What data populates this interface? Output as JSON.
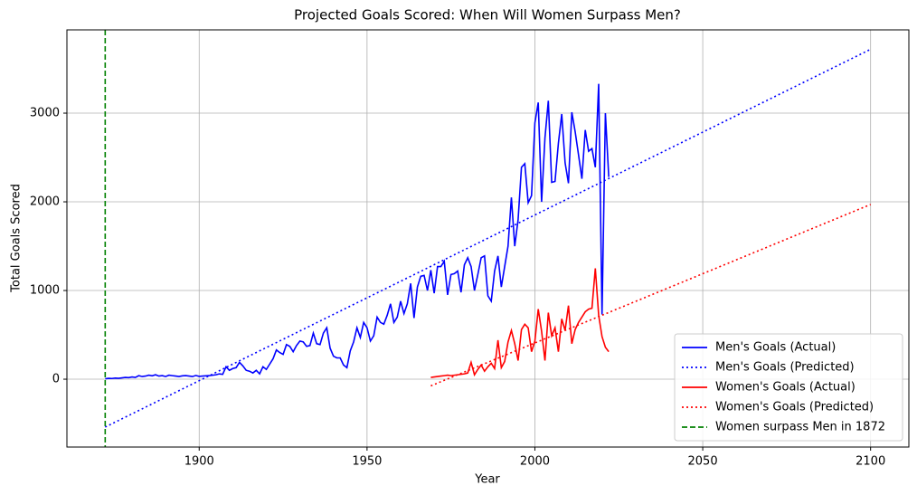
{
  "chart_data": {
    "type": "line",
    "title": "Projected Goals Scored: When Will Women Surpass Men?",
    "x_label": "Year",
    "y_label": "Total Goals Scored",
    "xlim": [
      1860.6,
      2111.4
    ],
    "ylim": [
      -765,
      3939
    ],
    "xticks": [
      1900,
      1950,
      2000,
      2050,
      2100
    ],
    "yticks": [
      0,
      1000,
      2000,
      3000
    ],
    "grid": true,
    "legend": "lower right",
    "series": [
      {
        "name": "Men's Goals (Actual)",
        "color": "#0000ff",
        "dash": "solid",
        "x": [
          1872,
          1873,
          1874,
          1875,
          1876,
          1877,
          1878,
          1879,
          1880,
          1881,
          1882,
          1883,
          1884,
          1885,
          1886,
          1887,
          1888,
          1889,
          1890,
          1891,
          1892,
          1893,
          1894,
          1895,
          1896,
          1897,
          1898,
          1899,
          1900,
          1901,
          1902,
          1903,
          1904,
          1905,
          1906,
          1907,
          1908,
          1909,
          1910,
          1911,
          1912,
          1913,
          1914,
          1915,
          1916,
          1917,
          1918,
          1919,
          1920,
          1921,
          1922,
          1923,
          1924,
          1925,
          1926,
          1927,
          1928,
          1929,
          1930,
          1931,
          1932,
          1933,
          1934,
          1935,
          1936,
          1937,
          1938,
          1939,
          1940,
          1941,
          1942,
          1943,
          1944,
          1945,
          1946,
          1947,
          1948,
          1949,
          1950,
          1951,
          1952,
          1953,
          1954,
          1955,
          1956,
          1957,
          1958,
          1959,
          1960,
          1961,
          1962,
          1963,
          1964,
          1965,
          1966,
          1967,
          1968,
          1969,
          1970,
          1971,
          1972,
          1973,
          1974,
          1975,
          1976,
          1977,
          1978,
          1979,
          1980,
          1981,
          1982,
          1983,
          1984,
          1985,
          1986,
          1987,
          1988,
          1989,
          1990,
          1991,
          1992,
          1993,
          1994,
          1995,
          1996,
          1997,
          1998,
          1999,
          2000,
          2001,
          2002,
          2003,
          2004,
          2005,
          2006,
          2007,
          2008,
          2009,
          2010,
          2011,
          2012,
          2013,
          2014,
          2015,
          2016,
          2017,
          2018,
          2019,
          2020,
          2021,
          2022
        ],
        "values": [
          5,
          10,
          8,
          12,
          10,
          15,
          20,
          18,
          25,
          20,
          40,
          30,
          35,
          45,
          38,
          50,
          35,
          40,
          30,
          45,
          40,
          35,
          30,
          38,
          40,
          35,
          30,
          42,
          32,
          35,
          38,
          40,
          45,
          50,
          60,
          55,
          140,
          100,
          120,
          130,
          190,
          150,
          100,
          90,
          70,
          100,
          60,
          140,
          110,
          170,
          230,
          330,
          300,
          280,
          390,
          370,
          310,
          380,
          430,
          420,
          370,
          380,
          520,
          400,
          390,
          520,
          580,
          350,
          260,
          240,
          240,
          160,
          130,
          320,
          420,
          580,
          470,
          640,
          580,
          430,
          490,
          700,
          640,
          620,
          720,
          850,
          640,
          700,
          880,
          740,
          850,
          1080,
          690,
          1040,
          1160,
          1170,
          1000,
          1230,
          970,
          1270,
          1270,
          1330,
          950,
          1180,
          1190,
          1220,
          980,
          1290,
          1370,
          1270,
          1000,
          1180,
          1370,
          1390,
          940,
          880,
          1220,
          1390,
          1040,
          1270,
          1500,
          2050,
          1500,
          1800,
          2390,
          2430,
          1990,
          2070,
          2890,
          3120,
          2000,
          2720,
          3140,
          2220,
          2230,
          2660,
          2990,
          2440,
          2210,
          3010,
          2790,
          2530,
          2260,
          2810,
          2570,
          2600,
          2390,
          3330,
          730,
          3000,
          2280
        ]
      },
      {
        "name": "Men's Goals (Predicted)",
        "color": "#0000ff",
        "dash": "dotted",
        "x": [
          1872,
          2100
        ],
        "values": [
          -540,
          3720
        ]
      },
      {
        "name": "Women's Goals (Actual)",
        "color": "#ff0000",
        "dash": "solid",
        "x": [
          1969,
          1970,
          1971,
          1972,
          1973,
          1974,
          1975,
          1976,
          1977,
          1978,
          1979,
          1980,
          1981,
          1982,
          1983,
          1984,
          1985,
          1986,
          1987,
          1988,
          1989,
          1990,
          1991,
          1992,
          1993,
          1994,
          1995,
          1996,
          1997,
          1998,
          1999,
          2000,
          2001,
          2002,
          2003,
          2004,
          2005,
          2006,
          2007,
          2008,
          2009,
          2010,
          2011,
          2012,
          2013,
          2014,
          2015,
          2016,
          2017,
          2018,
          2019,
          2020,
          2021,
          2022
        ],
        "values": [
          20,
          25,
          30,
          35,
          40,
          45,
          40,
          45,
          50,
          55,
          60,
          70,
          190,
          50,
          110,
          160,
          90,
          140,
          180,
          120,
          440,
          130,
          200,
          420,
          550,
          400,
          210,
          560,
          620,
          580,
          310,
          430,
          790,
          540,
          210,
          750,
          490,
          580,
          310,
          680,
          550,
          830,
          400,
          560,
          640,
          700,
          760,
          790,
          800,
          1250,
          720,
          480,
          360,
          310
        ]
      },
      {
        "name": "Women's Goals (Predicted)",
        "color": "#ff0000",
        "dash": "dotted",
        "x": [
          1969,
          2100
        ],
        "values": [
          -75,
          1970
        ]
      }
    ],
    "vline": {
      "x": 1872,
      "name": "Women surpass Men in 1872",
      "color": "#008000",
      "dash": "dashed"
    }
  }
}
